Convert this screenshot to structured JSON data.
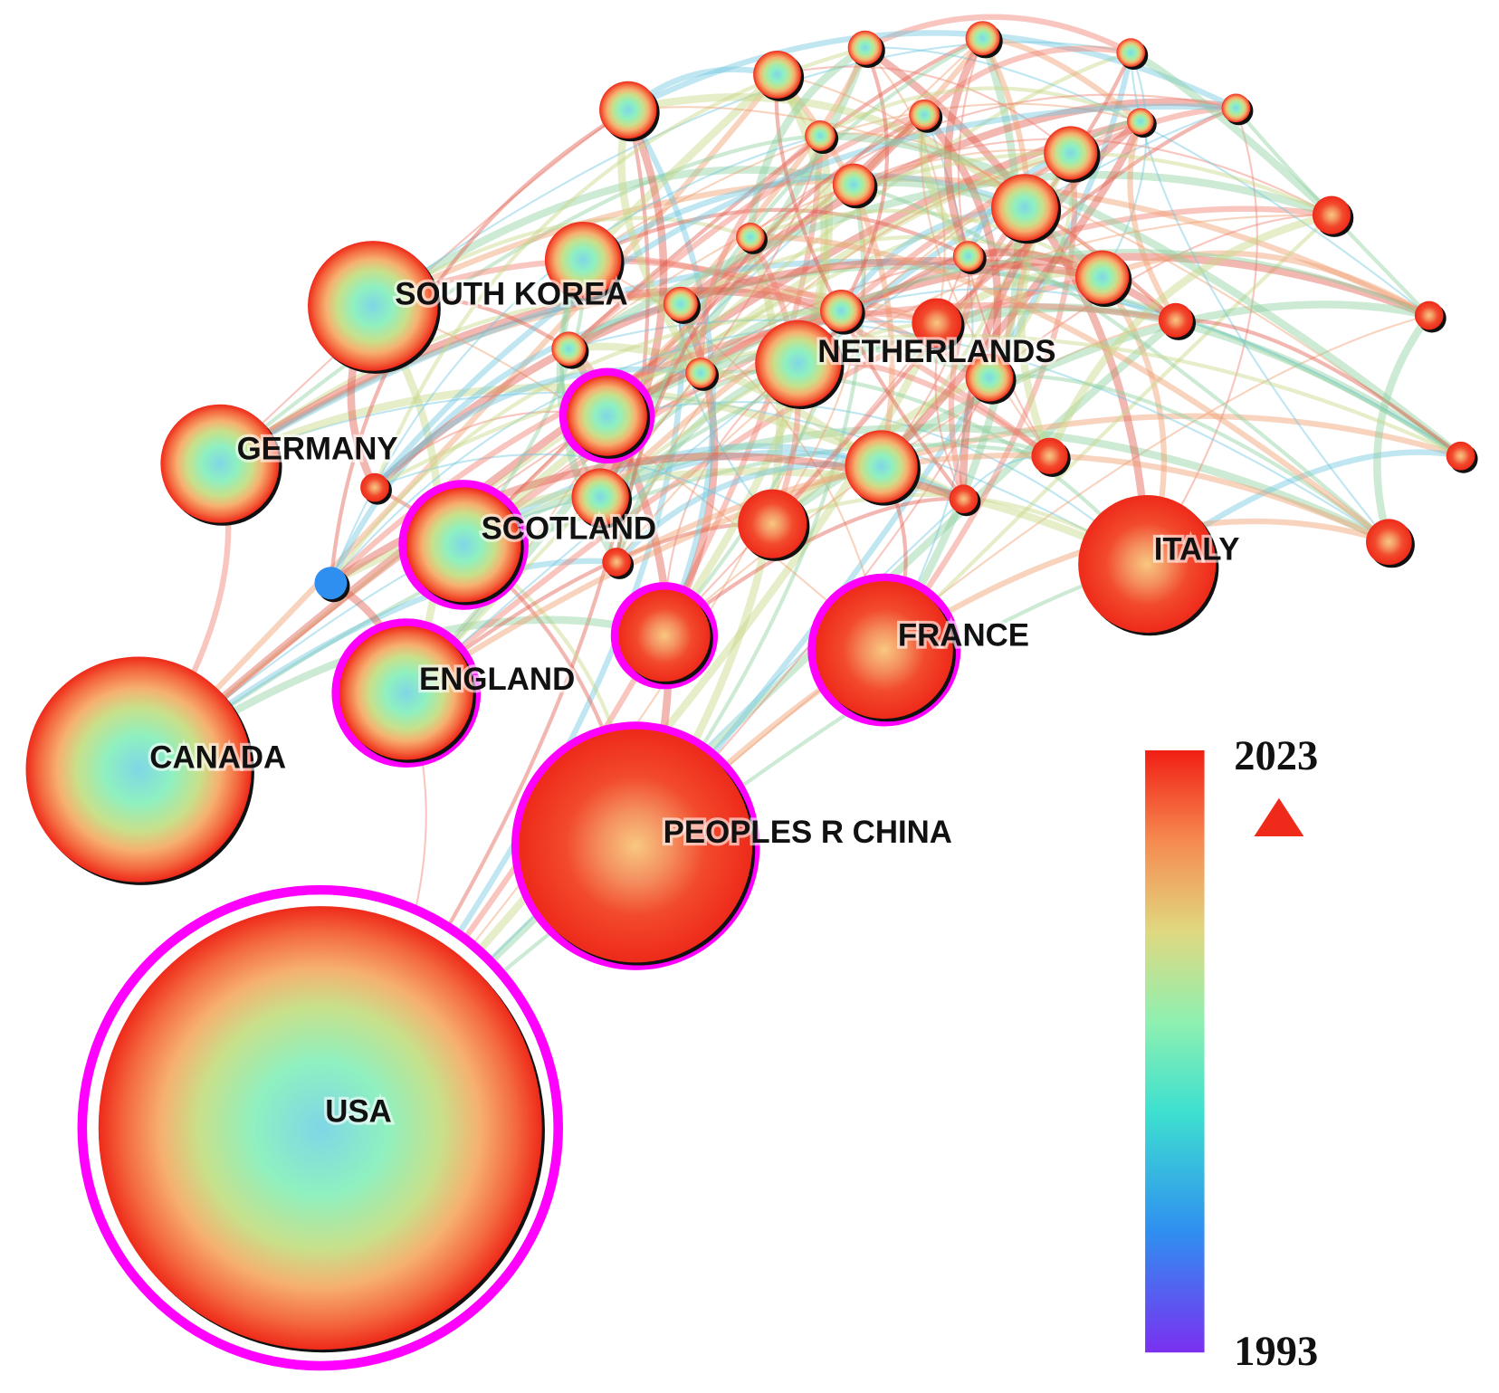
{
  "nodes": [
    {
      "label": "USA"
    },
    {
      "label": "PEOPLES R CHINA"
    },
    {
      "label": "CANADA"
    },
    {
      "label": "ENGLAND"
    },
    {
      "label": "SCOTLAND"
    },
    {
      "label": "GERMANY"
    },
    {
      "label": "SOUTH KOREA"
    },
    {
      "label": "NETHERLANDS"
    },
    {
      "label": "ITALY"
    },
    {
      "label": "FRANCE"
    }
  ],
  "legend": {
    "max_label": "2023",
    "min_label": "1993"
  }
}
